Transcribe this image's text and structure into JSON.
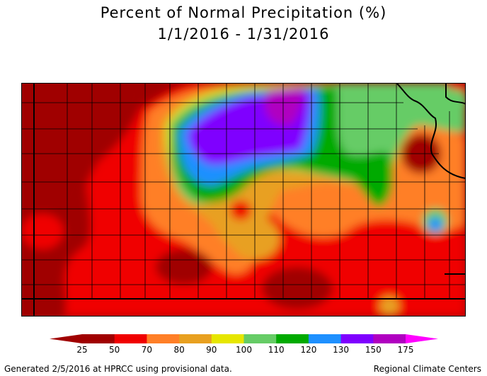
{
  "title": "Percent of Normal Precipitation (%)",
  "date_range": "1/1/2016 - 1/31/2016",
  "legend": {
    "ticks": [
      "25",
      "50",
      "70",
      "80",
      "90",
      "100",
      "110",
      "120",
      "130",
      "150",
      "175"
    ],
    "colors": [
      "#a00000",
      "#f00000",
      "#ff7f27",
      "#e8a020",
      "#e6e600",
      "#66cc66",
      "#00aa00",
      "#1e90ff",
      "#7f00ff",
      "#b000c0",
      "#ff00ff"
    ]
  },
  "map_colors": {
    "dark_red": "#a00000",
    "red": "#f00000",
    "orange": "#ff7f27",
    "light_orange": "#e8a020",
    "yellow": "#e6e600",
    "light_green": "#66cc66",
    "green": "#00aa00",
    "blue": "#1e90ff",
    "purple": "#7f00ff",
    "magenta": "#b000c0"
  },
  "footer": {
    "left": "Generated 2/5/2016 at HPRCC using provisional data.",
    "right": "Regional Climate Centers"
  }
}
